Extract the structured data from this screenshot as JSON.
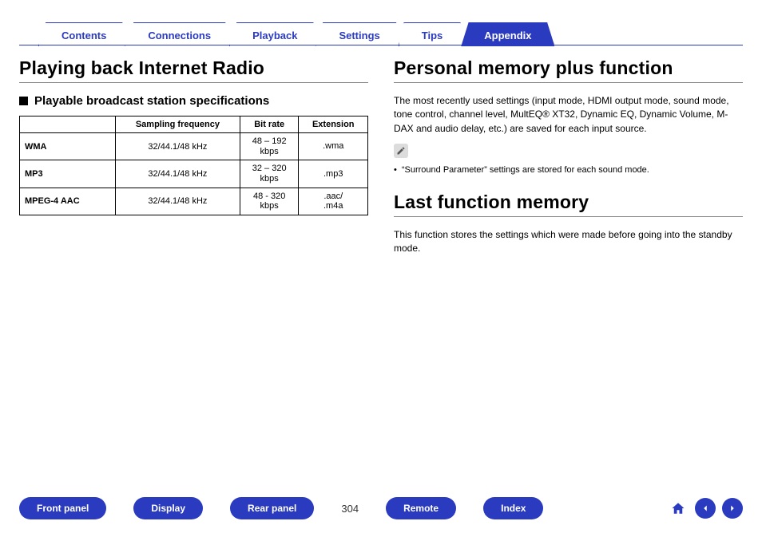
{
  "tabs": [
    {
      "label": "Contents",
      "active": false
    },
    {
      "label": "Connections",
      "active": false
    },
    {
      "label": "Playback",
      "active": false
    },
    {
      "label": "Settings",
      "active": false
    },
    {
      "label": "Tips",
      "active": false
    },
    {
      "label": "Appendix",
      "active": true
    }
  ],
  "left": {
    "h1": "Playing back Internet Radio",
    "h2": "Playable broadcast station specifications",
    "table": {
      "cols": [
        "",
        "Sampling frequency",
        "Bit rate",
        "Extension"
      ],
      "rows": [
        {
          "label": "WMA",
          "freq": "32/44.1/48 kHz",
          "bitrate": "48 – 192\nkbps",
          "ext": ".wma"
        },
        {
          "label": "MP3",
          "freq": "32/44.1/48 kHz",
          "bitrate": "32 – 320\nkbps",
          "ext": ".mp3"
        },
        {
          "label": "MPEG-4 AAC",
          "freq": "32/44.1/48 kHz",
          "bitrate": "48 - 320\nkbps",
          "ext": ".aac/\n.m4a"
        }
      ]
    }
  },
  "right": {
    "h1a": "Personal memory plus function",
    "para": "The most recently used settings (input mode, HDMI output mode, sound mode, tone control, channel level, MultEQ® XT32, Dynamic EQ, Dynamic Volume, M-DAX and audio delay, etc.) are saved for each input source.",
    "note": "“Surround Parameter” settings are stored for each sound mode.",
    "h1b": "Last function memory",
    "para2": "This function stores the settings which were made before going into the standby mode."
  },
  "footer": {
    "pills": [
      "Front panel",
      "Display",
      "Rear panel"
    ],
    "page": "304",
    "pills2": [
      "Remote",
      "Index"
    ]
  },
  "colors": {
    "brand": "#2b3bbf"
  }
}
